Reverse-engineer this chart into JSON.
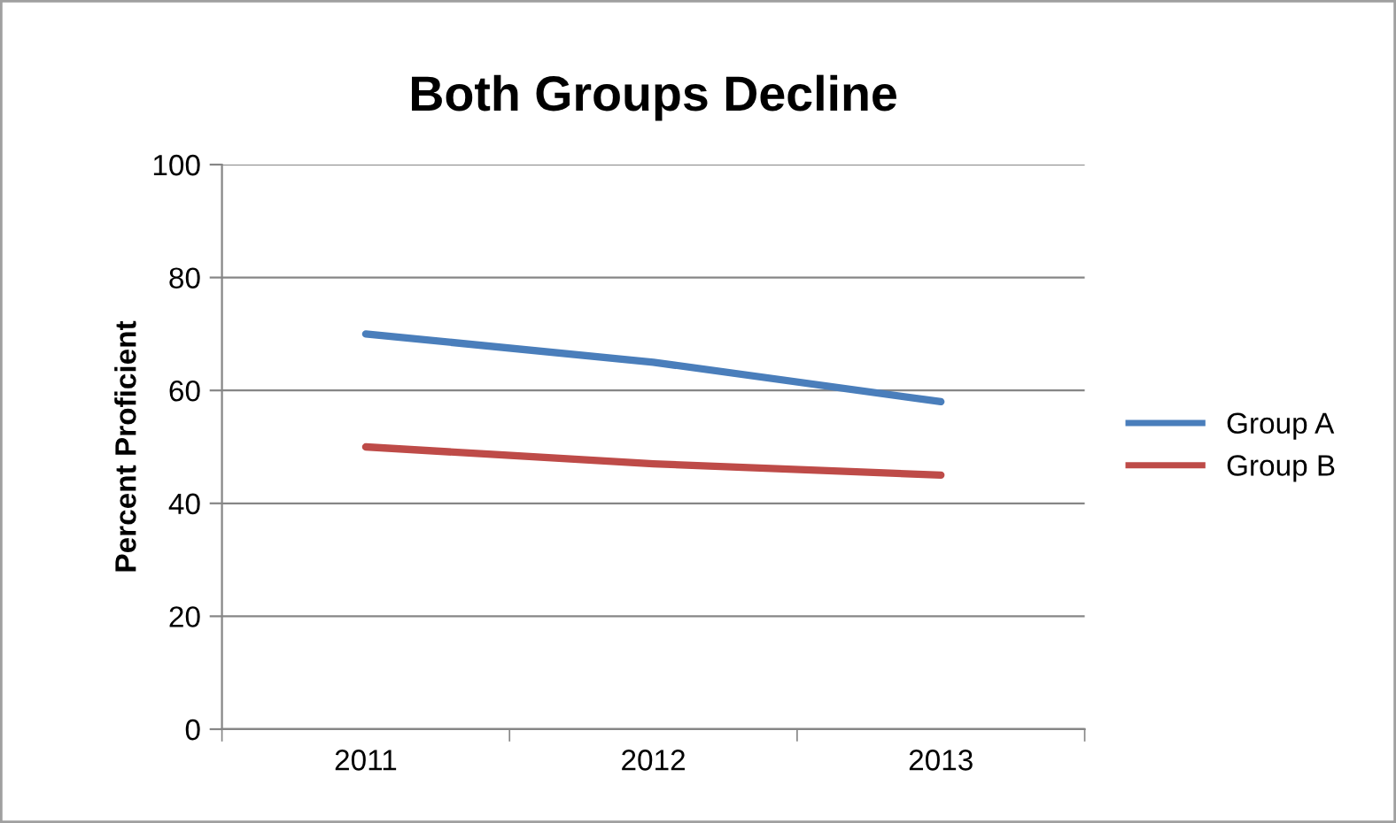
{
  "chart_data": {
    "type": "line",
    "title": "Both Groups Decline",
    "ylabel": "Percent Proficient",
    "categories": [
      "2011",
      "2012",
      "2013"
    ],
    "series": [
      {
        "name": "Group A",
        "color": "#4a7ebb",
        "values": [
          70,
          65,
          58
        ]
      },
      {
        "name": "Group B",
        "color": "#be4b48",
        "values": [
          50,
          47,
          45
        ]
      }
    ],
    "ylim": [
      0,
      100
    ],
    "yticks": [
      0,
      20,
      40,
      60,
      80,
      100
    ],
    "grid": "y",
    "legend": "right",
    "marker": "none",
    "line_style": "solid"
  }
}
